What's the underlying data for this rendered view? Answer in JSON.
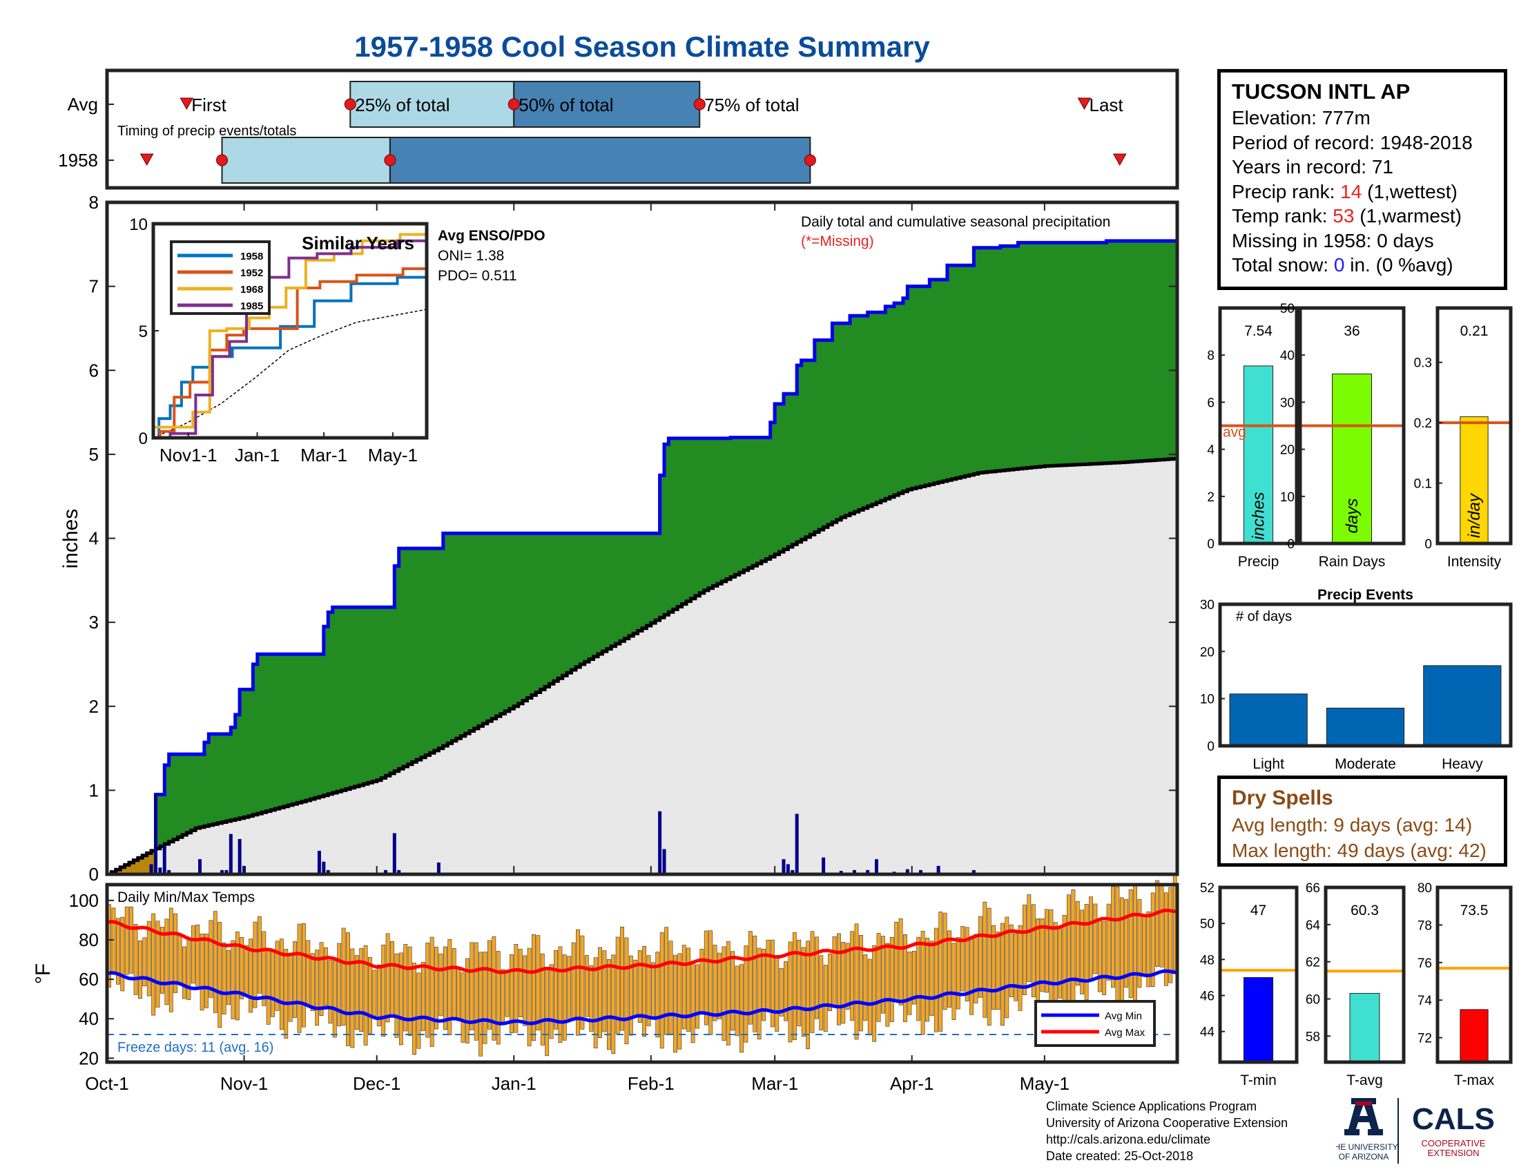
{
  "title": "1957-1958 Cool Season Climate Summary",
  "station": {
    "name": "TUCSON INTL AP",
    "elevation_label": "Elevation: 777m",
    "period_label": "Period of record: 1948-2018",
    "years_label": "Years in record: 71",
    "precip_rank_prefix": "Precip rank: ",
    "precip_rank_value": "14",
    "precip_rank_suffix": " (1,wettest)",
    "temp_rank_prefix": "Temp rank: ",
    "temp_rank_value": "53",
    "temp_rank_suffix": " (1,warmest)",
    "missing_label": "Missing in 1958: 0 days",
    "snow_prefix": "Total snow: ",
    "snow_value": "0",
    "snow_suffix": " in. (0 %avg)"
  },
  "dry_spells": {
    "title": "Dry Spells",
    "avg_length": "Avg length: 9 days (avg: 14)",
    "max_length": "Max length: 49 days (avg: 42)"
  },
  "credits": {
    "line1": "Climate Science Applications Program",
    "line2": "University of Arizona Cooperative Extension",
    "line3": "http://cals.arizona.edu/climate",
    "line4": " Date created: 25-Oct-2018"
  },
  "logo": {
    "ua_line1": "THE UNIVERSITY",
    "ua_line2": "OF ARIZONA",
    "cals": "CALS",
    "cals_line1": "COOPERATIVE",
    "cals_line2": "EXTENSION"
  },
  "colors": {
    "title": "#0a4c9a",
    "cumulative_fill": "#228b22",
    "cumulative_line": "#0000ee",
    "avg_fill": "#e8e8e8",
    "daily_bar": "#00008b",
    "temp_bar": "#f5a623",
    "avg_min": "#0000ff",
    "avg_max": "#ff0000",
    "precip_bar": "#40e0d0",
    "raindays_bar": "#7cfc00",
    "intensity_bar": "#ffd700",
    "events_bar": "#0066b3",
    "avg_line": "#d95319",
    "temp_avg_line": "#ffa500"
  },
  "chart_data": [
    {
      "id": "timing",
      "type": "timeline",
      "note": "Timing of precip events/totals",
      "rows": [
        {
          "name": "Avg",
          "first": "Oct-19",
          "p25": "Nov-25",
          "p50": "Jan-1",
          "p75": "Feb-12",
          "last": "May-10"
        },
        {
          "name": "1958",
          "first": "Oct-10",
          "p25": "Oct-27",
          "p50": "Dec-4",
          "p75": "Mar-9",
          "last": "May-18"
        }
      ],
      "labels": {
        "first": "First",
        "p25": "25% of total",
        "p50": "50% of total",
        "p75": "75% of total",
        "last": "Last"
      }
    },
    {
      "id": "cumulative_precip",
      "type": "area",
      "title": "Daily total and cumulative seasonal precipitation",
      "missing_note": "(*=Missing)",
      "ylabel": "inches",
      "ylim": [
        0,
        8
      ],
      "yticks": [
        0,
        1,
        2,
        3,
        4,
        5,
        6,
        7,
        8
      ],
      "xticks": [
        "Oct-1",
        "Nov-1",
        "Dec-1",
        "Jan-1",
        "Feb-1",
        "Mar-1",
        "Apr-1",
        "May-1"
      ],
      "cumulative_1958": [
        [
          0,
          0
        ],
        [
          10,
          0
        ],
        [
          11,
          0.95
        ],
        [
          12,
          0.95
        ],
        [
          13,
          1.3
        ],
        [
          14,
          1.43
        ],
        [
          21,
          1.43
        ],
        [
          22,
          1.57
        ],
        [
          23,
          1.67
        ],
        [
          27,
          1.67
        ],
        [
          28,
          1.75
        ],
        [
          29,
          1.9
        ],
        [
          30,
          2.2
        ],
        [
          32,
          2.2
        ],
        [
          33,
          2.5
        ],
        [
          34,
          2.62
        ],
        [
          48,
          2.62
        ],
        [
          49,
          2.95
        ],
        [
          50,
          3.12
        ],
        [
          51,
          3.18
        ],
        [
          64,
          3.18
        ],
        [
          65,
          3.67
        ],
        [
          66,
          3.88
        ],
        [
          75,
          3.88
        ],
        [
          76,
          4.06
        ],
        [
          124,
          4.06
        ],
        [
          125,
          4.75
        ],
        [
          126,
          5.12
        ],
        [
          127,
          5.19
        ],
        [
          140,
          5.19
        ],
        [
          141,
          5.2
        ],
        [
          149,
          5.2
        ],
        [
          150,
          5.38
        ],
        [
          151,
          5.6
        ],
        [
          152,
          5.6
        ],
        [
          153,
          5.72
        ],
        [
          155,
          5.72
        ],
        [
          156,
          6.06
        ],
        [
          157,
          6.12
        ],
        [
          159,
          6.12
        ],
        [
          160,
          6.36
        ],
        [
          163,
          6.36
        ],
        [
          164,
          6.56
        ],
        [
          167,
          6.56
        ],
        [
          168,
          6.65
        ],
        [
          171,
          6.65
        ],
        [
          172,
          6.69
        ],
        [
          175,
          6.69
        ],
        [
          176,
          6.76
        ],
        [
          178,
          6.8
        ],
        [
          180,
          6.86
        ],
        [
          181,
          7.0
        ],
        [
          185,
          7.0
        ],
        [
          186,
          7.08
        ],
        [
          189,
          7.08
        ],
        [
          190,
          7.25
        ],
        [
          195,
          7.25
        ],
        [
          196,
          7.46
        ],
        [
          201,
          7.46
        ],
        [
          202,
          7.48
        ],
        [
          205,
          7.48
        ],
        [
          206,
          7.52
        ],
        [
          225,
          7.52
        ],
        [
          226,
          7.54
        ],
        [
          242,
          7.54
        ]
      ],
      "average_cumulative": [
        [
          0,
          0
        ],
        [
          10,
          0.28
        ],
        [
          20,
          0.55
        ],
        [
          31,
          0.68
        ],
        [
          45,
          0.88
        ],
        [
          61,
          1.12
        ],
        [
          75,
          1.5
        ],
        [
          92,
          2.0
        ],
        [
          107,
          2.5
        ],
        [
          122,
          2.96
        ],
        [
          135,
          3.38
        ],
        [
          150,
          3.78
        ],
        [
          166,
          4.25
        ],
        [
          181,
          4.58
        ],
        [
          197,
          4.78
        ],
        [
          212,
          4.86
        ],
        [
          228,
          4.9
        ],
        [
          242,
          4.95
        ]
      ],
      "daily_bars": [
        [
          10,
          0.12
        ],
        [
          11,
          0.95
        ],
        [
          12,
          0.08
        ],
        [
          13,
          0.35
        ],
        [
          14,
          0.05
        ],
        [
          21,
          0.18
        ],
        [
          26,
          0.05
        ],
        [
          27,
          0.05
        ],
        [
          28,
          0.48
        ],
        [
          30,
          0.42
        ],
        [
          31,
          0.1
        ],
        [
          45,
          0.02
        ],
        [
          48,
          0.28
        ],
        [
          49,
          0.15
        ],
        [
          50,
          0.05
        ],
        [
          63,
          0.05
        ],
        [
          65,
          0.49
        ],
        [
          66,
          0.05
        ],
        [
          75,
          0.14
        ],
        [
          125,
          0.75
        ],
        [
          126,
          0.3
        ],
        [
          127,
          0.02
        ],
        [
          153,
          0.18
        ],
        [
          154,
          0.12
        ],
        [
          155,
          0.05
        ],
        [
          156,
          0.72
        ],
        [
          162,
          0.2
        ],
        [
          166,
          0.04
        ],
        [
          169,
          0.05
        ],
        [
          172,
          0.05
        ],
        [
          174,
          0.18
        ],
        [
          178,
          0.03
        ],
        [
          181,
          0.06
        ],
        [
          184,
          0.05
        ],
        [
          188,
          0.1
        ],
        [
          196,
          0.05
        ]
      ]
    },
    {
      "id": "similar_years",
      "type": "line",
      "title": "Similar Years",
      "ylim": [
        0,
        10
      ],
      "yticks": [
        0,
        5,
        10
      ],
      "xticks": [
        "Nov1-1",
        "Jan-1",
        "Mar-1",
        "May-1"
      ],
      "series": [
        {
          "name": "1958",
          "color": "#0072bd",
          "points": [
            [
              0,
              0
            ],
            [
              10,
              0.9
            ],
            [
              20,
              1.5
            ],
            [
              30,
              2.6
            ],
            [
              40,
              3.3
            ],
            [
              60,
              3.8
            ],
            [
              80,
              4.2
            ],
            [
              100,
              4.2
            ],
            [
              125,
              5.2
            ],
            [
              160,
              6.4
            ],
            [
              190,
              7.2
            ],
            [
              242,
              7.5
            ]
          ]
        },
        {
          "name": "1952",
          "color": "#d95319",
          "points": [
            [
              0,
              0
            ],
            [
              12,
              0.3
            ],
            [
              25,
              1.9
            ],
            [
              40,
              2.6
            ],
            [
              60,
              4.1
            ],
            [
              70,
              4.8
            ],
            [
              90,
              5.1
            ],
            [
              120,
              5.1
            ],
            [
              135,
              7.0
            ],
            [
              160,
              7.3
            ],
            [
              200,
              7.6
            ],
            [
              242,
              7.9
            ]
          ]
        },
        {
          "name": "1968",
          "color": "#edb120",
          "points": [
            [
              0,
              0.5
            ],
            [
              25,
              0.5
            ],
            [
              45,
              1.2
            ],
            [
              55,
              5.0
            ],
            [
              75,
              5.1
            ],
            [
              95,
              5.6
            ],
            [
              110,
              6.1
            ],
            [
              125,
              7.0
            ],
            [
              145,
              8.3
            ],
            [
              175,
              8.6
            ],
            [
              195,
              9.2
            ],
            [
              242,
              9.5
            ]
          ]
        },
        {
          "name": "1985",
          "color": "#7e2f8e",
          "points": [
            [
              0,
              0
            ],
            [
              30,
              0.2
            ],
            [
              45,
              2.0
            ],
            [
              60,
              3.8
            ],
            [
              75,
              4.5
            ],
            [
              90,
              6.2
            ],
            [
              110,
              7.5
            ],
            [
              130,
              8.4
            ],
            [
              160,
              8.6
            ],
            [
              190,
              8.9
            ],
            [
              242,
              9.2
            ]
          ]
        }
      ],
      "average_points": [
        [
          0,
          0
        ],
        [
          30,
          0.7
        ],
        [
          60,
          1.6
        ],
        [
          90,
          2.8
        ],
        [
          120,
          4.1
        ],
        [
          150,
          4.8
        ],
        [
          180,
          5.4
        ],
        [
          242,
          6.0
        ]
      ],
      "enso_title": "Avg ENSO/PDO",
      "oni": "ONI= 1.38",
      "pdo": "PDO= 0.511"
    },
    {
      "id": "temperature",
      "type": "bar",
      "title": "Daily Min/Max Temps",
      "ylabel": "°F",
      "ylim": [
        18,
        108
      ],
      "yticks": [
        20,
        40,
        60,
        80,
        100
      ],
      "freeze_label": "Freeze days: 11 (avg. 16)",
      "freeze_line": 32,
      "avg_min_label": "Avg Min",
      "avg_max_label": "Avg Max",
      "avg_min": [
        [
          0,
          63
        ],
        [
          31,
          52
        ],
        [
          61,
          41
        ],
        [
          92,
          38
        ],
        [
          123,
          41
        ],
        [
          151,
          44
        ],
        [
          182,
          50
        ],
        [
          212,
          58
        ],
        [
          242,
          64
        ]
      ],
      "avg_max": [
        [
          0,
          89
        ],
        [
          31,
          76
        ],
        [
          61,
          67
        ],
        [
          92,
          64
        ],
        [
          123,
          67
        ],
        [
          151,
          72
        ],
        [
          182,
          77
        ],
        [
          212,
          86
        ],
        [
          242,
          95
        ]
      ],
      "daily_min_anchor": [
        [
          0,
          62
        ],
        [
          31,
          50
        ],
        [
          61,
          38
        ],
        [
          92,
          38
        ],
        [
          123,
          38
        ],
        [
          151,
          40
        ],
        [
          182,
          46
        ],
        [
          212,
          55
        ],
        [
          242,
          65
        ]
      ],
      "daily_max_anchor": [
        [
          0,
          88
        ],
        [
          31,
          78
        ],
        [
          61,
          70
        ],
        [
          92,
          70
        ],
        [
          123,
          72
        ],
        [
          151,
          72
        ],
        [
          182,
          78
        ],
        [
          212,
          90
        ],
        [
          242,
          102
        ]
      ]
    },
    {
      "id": "precip_total",
      "type": "bar",
      "xlabel": "Precip",
      "bar_label": "inches",
      "value": 7.54,
      "value_label": "7.54",
      "avg": 5.0,
      "avg_label": "avg",
      "ylim": [
        0,
        10
      ],
      "yticks": [
        0,
        2,
        4,
        6,
        8
      ]
    },
    {
      "id": "rain_days",
      "type": "bar",
      "xlabel": "Rain Days",
      "bar_label": "days",
      "value": 36,
      "value_label": "36",
      "avg": 25,
      "ylim": [
        0,
        50
      ],
      "yticks": [
        0,
        10,
        20,
        30,
        40,
        50
      ]
    },
    {
      "id": "intensity",
      "type": "bar",
      "xlabel": "Intensity",
      "bar_label": "in/day",
      "value": 0.21,
      "value_label": "0.21",
      "avg": 0.2,
      "ylim": [
        0,
        0.39
      ],
      "yticks": [
        0,
        0.1,
        0.2,
        0.3
      ],
      "ytick_labels": [
        "0",
        "0.1",
        "0.2",
        "0.3"
      ]
    },
    {
      "id": "precip_events",
      "type": "bar",
      "title": "Precip Events",
      "ylabel": "# of days",
      "categories": [
        "Light",
        "Moderate",
        "Heavy"
      ],
      "values": [
        11,
        8,
        17
      ],
      "ylim": [
        0,
        30
      ],
      "yticks": [
        0,
        10,
        20,
        30
      ]
    },
    {
      "id": "tmin",
      "type": "bar",
      "xlabel": "T-min",
      "value": 47.0,
      "value_label": "47",
      "avg": 47.4,
      "ylim": [
        42.3,
        52
      ],
      "yticks": [
        44,
        46,
        48,
        50,
        52
      ]
    },
    {
      "id": "tavg",
      "type": "bar",
      "xlabel": "T-avg",
      "value": 60.3,
      "value_label": "60.3",
      "avg": 61.5,
      "ylim": [
        56.6,
        66
      ],
      "yticks": [
        58,
        60,
        62,
        64,
        66
      ]
    },
    {
      "id": "tmax",
      "type": "bar",
      "xlabel": "T-max",
      "value": 73.5,
      "value_label": "73.5",
      "avg": 75.7,
      "ylim": [
        70.7,
        80
      ],
      "yticks": [
        72,
        74,
        76,
        78,
        80
      ]
    }
  ]
}
